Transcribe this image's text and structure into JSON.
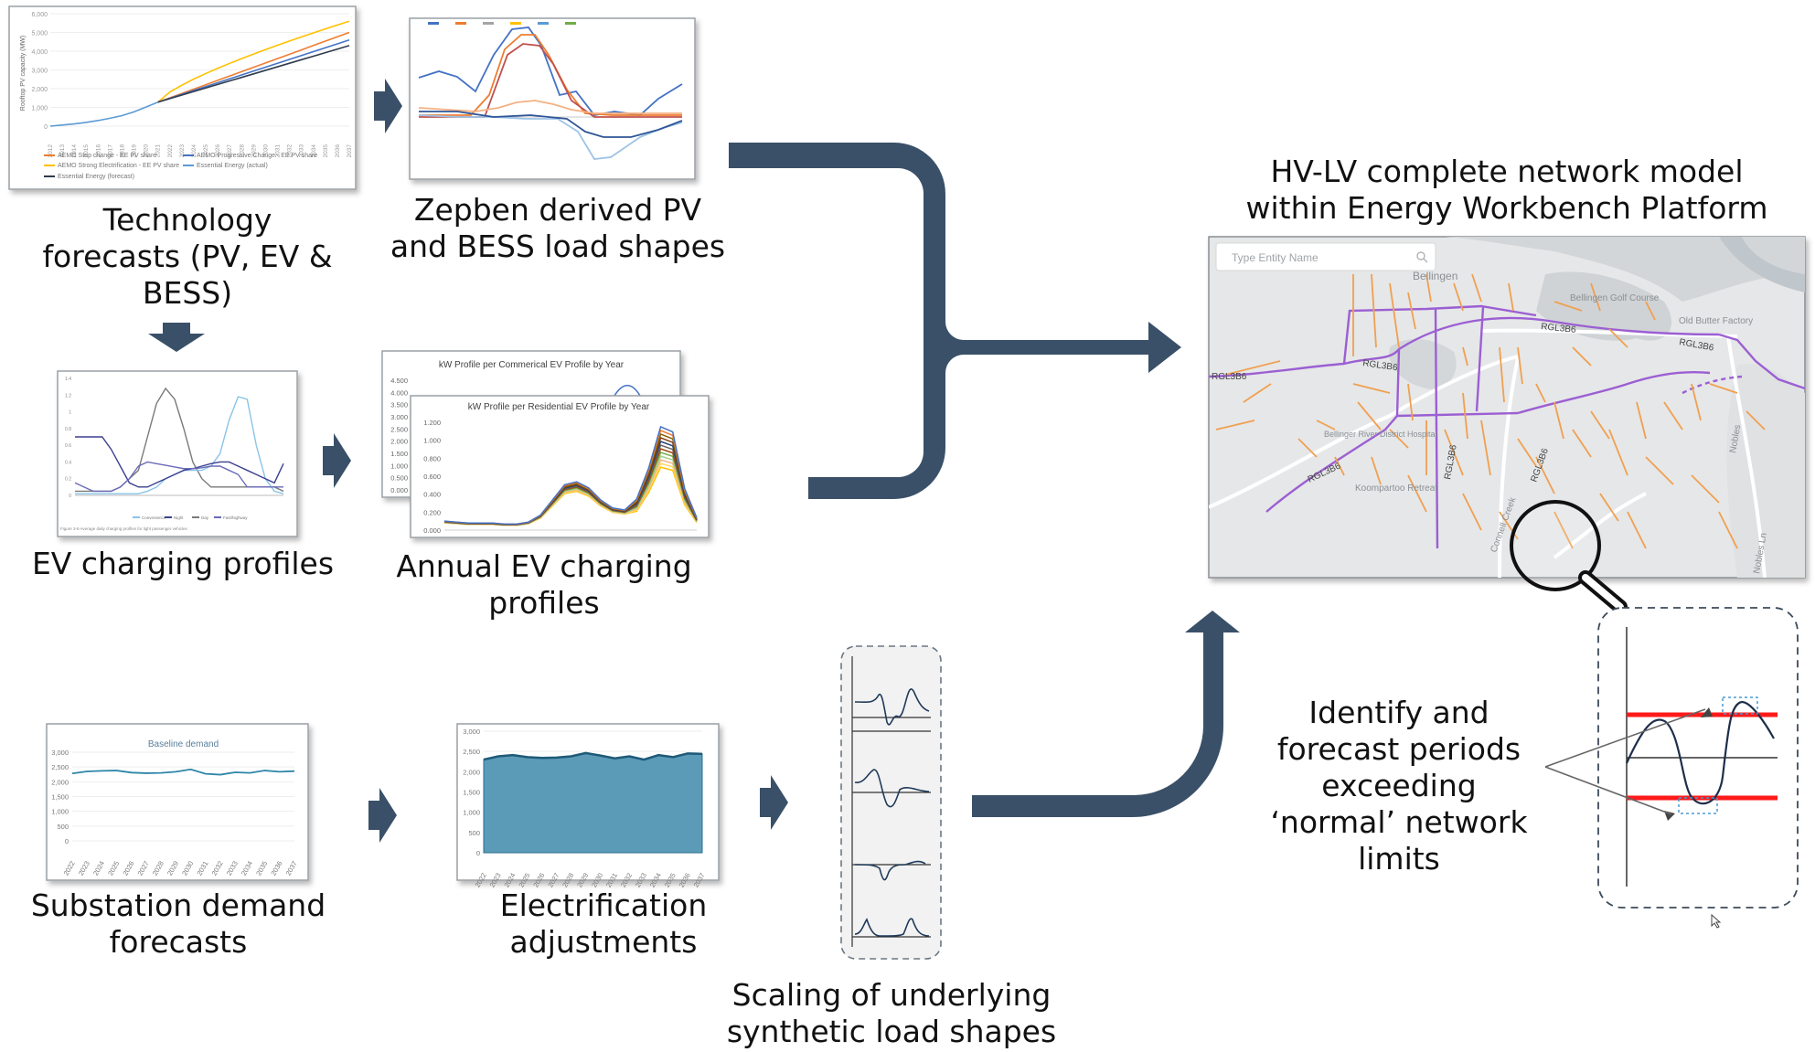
{
  "colors": {
    "arrow": "#3a5068",
    "accent_red": "#ff1a1a",
    "pv_step": "#ed7d31",
    "pv_progressive": "#4472c4",
    "pv_strong": "#ffc000",
    "pv_essential": "#2f3b4c",
    "demand": "#2e86a8",
    "network_hv": "#9b59d0",
    "network_lv": "#f0a050"
  },
  "captions": {
    "technology_forecasts": [
      "Technology",
      "forecasts (PV, EV &",
      "BESS)"
    ],
    "zepben_shapes": [
      "Zepben derived PV",
      "and BESS load shapes"
    ],
    "ev_charging_profiles": [
      "EV charging profiles"
    ],
    "annual_ev_profiles": [
      "Annual EV charging",
      "profiles"
    ],
    "substation_forecasts": [
      "Substation demand",
      "forecasts"
    ],
    "electrification_adjustments": [
      "Electrification",
      "adjustments"
    ],
    "scaling_shapes": [
      "Scaling of underlying",
      "synthetic load shapes"
    ],
    "network_model": [
      "HV-LV complete network model",
      "within Energy Workbench Platform"
    ],
    "identify_periods": [
      "Identify and",
      "forecast periods",
      "exceeding",
      "‘normal’ network",
      "limits"
    ]
  },
  "pv_chart": {
    "ylabel": "Rooftop PV capacity (MW)",
    "y_ticks": [
      "6,000",
      "5,000",
      "4,000",
      "3,000",
      "2,000",
      "1,000",
      "0"
    ],
    "x_ticks": [
      "2012",
      "2013",
      "2014",
      "2015",
      "2016",
      "2017",
      "2018",
      "2019",
      "2020",
      "2021",
      "2022",
      "2023",
      "2024",
      "2025",
      "2026",
      "2027",
      "2028",
      "2029",
      "2030",
      "2031",
      "2032",
      "2033",
      "2034",
      "2035",
      "2036",
      "2037"
    ],
    "legend": [
      "AEMO Step change - EE PV share",
      "AEMO Progressive Change - EE PV share",
      "AEMO Strong Electrification - EE PV share",
      "Essential Energy (actual)",
      "Essential Energy (forecast)"
    ]
  },
  "commercial_ev_chart": {
    "title": "kW Profile per Commerical EV Profile by Year",
    "y_ticks": [
      "4.500",
      "4.000",
      "3.500",
      "3.000",
      "2.500",
      "2.000",
      "1.500",
      "1.000",
      "0.500",
      "0.000"
    ]
  },
  "residential_ev_chart": {
    "title": "kW Profile per Residential EV Profile by Year",
    "y_ticks": [
      "1.200",
      "1.000",
      "0.800",
      "0.600",
      "0.400",
      "0.200",
      "0.000"
    ]
  },
  "ev_daily_chart": {
    "y_ticks": [
      "1.4",
      "1.2",
      "1",
      "0.8",
      "0.6",
      "0.4",
      "0.2",
      "0"
    ],
    "legend": [
      "Convenience",
      "Night",
      "Day",
      "Fast/highway"
    ],
    "caption": "Figure 3-9 Average daily charging profiles for light passenger vehicles"
  },
  "baseline_chart": {
    "title": "Baseline demand",
    "y_ticks": [
      "3,000",
      "2,500",
      "2,000",
      "1,500",
      "1,000",
      "500",
      "0"
    ],
    "x_ticks": [
      "2022",
      "2023",
      "2024",
      "2025",
      "2026",
      "2027",
      "2028",
      "2029",
      "2030",
      "2031",
      "2032",
      "2033",
      "2034",
      "2035",
      "2036",
      "2037"
    ]
  },
  "electrification_chart": {
    "y_ticks": [
      "3,000",
      "2,500",
      "2,000",
      "1,500",
      "1,000",
      "500",
      "0"
    ],
    "x_ticks": [
      "2022",
      "2023",
      "2024",
      "2025",
      "2026",
      "2027",
      "2028",
      "2029",
      "2030",
      "2031",
      "2032",
      "2033",
      "2034",
      "2035",
      "2036",
      "2037"
    ]
  },
  "map": {
    "search_placeholder": "Type Entity Name",
    "labels": [
      "Bellingen",
      "Bellingen Golf Course",
      "Old Butter Factory",
      "RGL3B6",
      "RGL3B6",
      "RGL3B6",
      "RGL3B6",
      "RGL3B6",
      "RGL3B6",
      "RGL3B6",
      "Bellinger River District Hospital",
      "Koompartoo Retreat",
      "Connell Creek",
      "Nobles Ln",
      "Nobles"
    ]
  }
}
